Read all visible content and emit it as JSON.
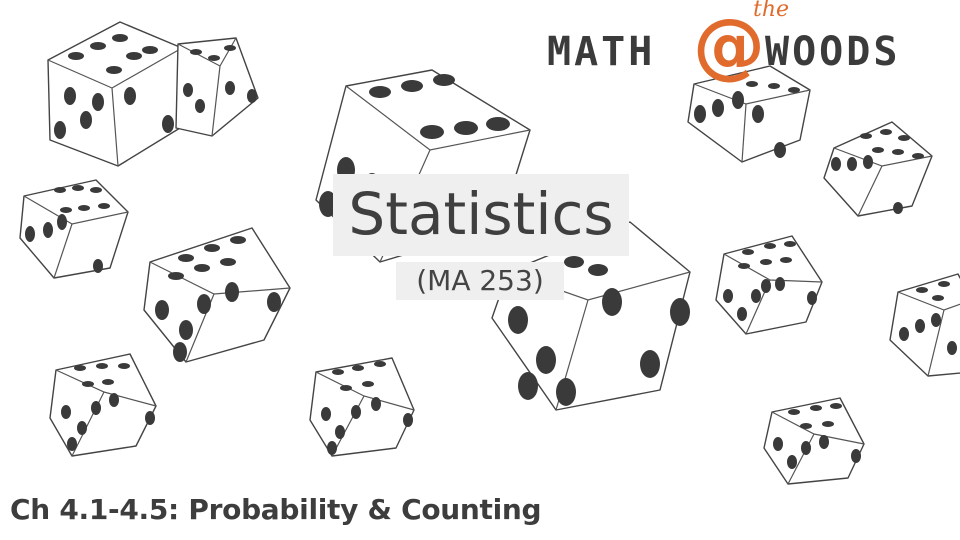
{
  "slide": {
    "title": "Statistics",
    "course_code": "(MA 253)",
    "chapter": "Ch 4.1-4.5: Probability & Counting"
  },
  "logo": {
    "left_word": "MATH",
    "at_symbol": "@",
    "superscript": "the",
    "right_word": "WOODS",
    "accent_color": "#e06b2c"
  }
}
